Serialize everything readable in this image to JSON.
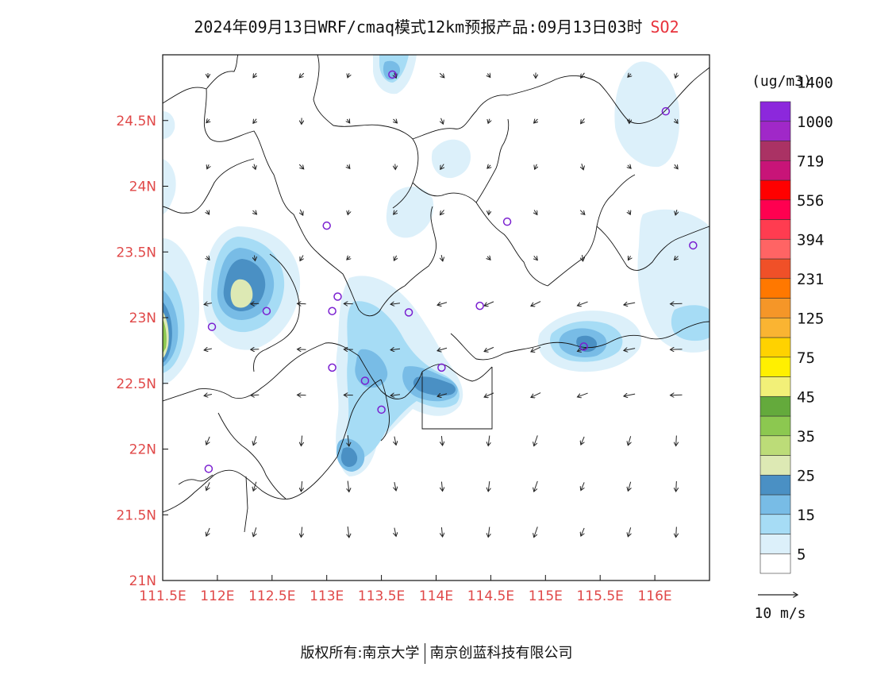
{
  "title": {
    "text": "2024年09月13日WRF/cmaq模式12km预报产品:09月13日03时",
    "species": "SO2"
  },
  "map": {
    "lon_ticks": [
      "111.5E",
      "112E",
      "112.5E",
      "113E",
      "113.5E",
      "114E",
      "114.5E",
      "115E",
      "115.5E",
      "116E"
    ],
    "lat_ticks": [
      "21N",
      "21.5N",
      "22N",
      "22.5N",
      "23N",
      "23.5N",
      "24N",
      "24.5N"
    ],
    "lon_range": [
      111.5,
      116.5
    ],
    "lat_range": [
      21.0,
      25.0
    ]
  },
  "colorbar": {
    "unit": "(ug/m3)",
    "labels": [
      "5",
      "15",
      "25",
      "35",
      "45",
      "75",
      "125",
      "231",
      "394",
      "556",
      "719",
      "1000",
      "1400"
    ],
    "colors": [
      "#ffffff",
      "#dcf0fa",
      "#a6dcf5",
      "#78bce6",
      "#4a90c4",
      "#dde9b4",
      "#bcdc78",
      "#8cc850",
      "#64aa3c",
      "#f2f078",
      "#fff000",
      "#ffd200",
      "#fab432",
      "#f59628",
      "#ff7800",
      "#f05028",
      "#ff6464",
      "#ff3c50",
      "#ff0050",
      "#ff0000",
      "#c81478",
      "#aa3264",
      "#a028c8",
      "#8c28dc"
    ]
  },
  "wind_legend": {
    "label": "10 m/s"
  },
  "stations": [
    {
      "lon": 113.6,
      "lat": 24.85
    },
    {
      "lon": 116.1,
      "lat": 24.57
    },
    {
      "lon": 113.0,
      "lat": 23.7
    },
    {
      "lon": 114.65,
      "lat": 23.73
    },
    {
      "lon": 116.35,
      "lat": 23.55
    },
    {
      "lon": 112.45,
      "lat": 23.05
    },
    {
      "lon": 111.95,
      "lat": 22.93
    },
    {
      "lon": 113.1,
      "lat": 23.16
    },
    {
      "lon": 113.05,
      "lat": 23.05
    },
    {
      "lon": 113.75,
      "lat": 23.04
    },
    {
      "lon": 114.4,
      "lat": 23.09
    },
    {
      "lon": 115.35,
      "lat": 22.78
    },
    {
      "lon": 113.05,
      "lat": 22.62
    },
    {
      "lon": 113.35,
      "lat": 22.52
    },
    {
      "lon": 114.05,
      "lat": 22.62
    },
    {
      "lon": 113.5,
      "lat": 22.3
    },
    {
      "lon": 111.92,
      "lat": 21.85
    }
  ],
  "copyright": {
    "left": "版权所有:南京大学",
    "right": "南京创蓝科技有限公司"
  }
}
